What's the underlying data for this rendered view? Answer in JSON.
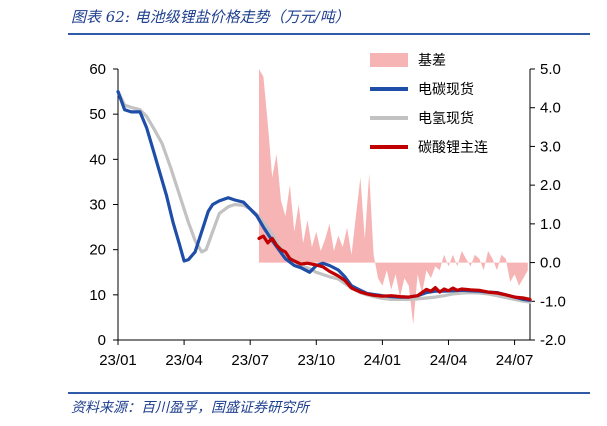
{
  "header": {
    "title": "图表 62:  电池级锂盐价格走势（万元/吨）"
  },
  "footer": {
    "source": "资料来源：百川盈孚，国盛证券研究所"
  },
  "chart_data": {
    "type": "line",
    "title": "图表 62:  电池级锂盐价格走势（万元/吨）",
    "xlabel": "",
    "ylabel": "",
    "x_tick_labels": [
      "23/01",
      "23/04",
      "23/07",
      "23/10",
      "24/01",
      "24/04",
      "24/07"
    ],
    "x_tick_positions": [
      0,
      3,
      6,
      9,
      12,
      15,
      18
    ],
    "ylim_left": [
      0,
      60
    ],
    "yticks_left": [
      "0",
      "10",
      "20",
      "30",
      "40",
      "50",
      "60"
    ],
    "ylim_right": [
      -2.0,
      5.0
    ],
    "yticks_right": [
      "-2.0",
      "-1.0",
      "0.0",
      "1.0",
      "2.0",
      "3.0",
      "4.0",
      "5.0"
    ],
    "legend_position": "top-right",
    "colors": {
      "basis": "#f7b4b4",
      "carbonate": "#1f4ea8",
      "hydroxide": "#c2c2c2",
      "futures": "#c00000",
      "rule": "#2e5aa8",
      "title": "#1f3f8f"
    },
    "series": [
      {
        "name": "基差",
        "type": "area",
        "axis": "right",
        "x": [
          6.4,
          6.6,
          6.8,
          7.0,
          7.2,
          7.4,
          7.6,
          7.8,
          8.0,
          8.2,
          8.4,
          8.6,
          8.8,
          9.0,
          9.2,
          9.4,
          9.6,
          9.8,
          10.0,
          10.2,
          10.4,
          10.6,
          10.8,
          11.0,
          11.2,
          11.4,
          11.6,
          11.8,
          12.0,
          12.2,
          12.4,
          12.6,
          12.8,
          13.0,
          13.2,
          13.4,
          13.6,
          13.8,
          14.0,
          14.2,
          14.4,
          14.6,
          14.8,
          15.0,
          15.2,
          15.4,
          15.6,
          15.8,
          16.0,
          16.2,
          16.4,
          16.6,
          16.8,
          17.0,
          17.2,
          17.4,
          17.6,
          17.8,
          18.0,
          18.2,
          18.4,
          18.6
        ],
        "values": [
          5.0,
          4.8,
          3.6,
          2.2,
          2.8,
          1.6,
          1.2,
          2.0,
          0.8,
          1.5,
          0.5,
          1.1,
          0.4,
          0.8,
          0.3,
          0.6,
          1.0,
          0.3,
          0.7,
          0.4,
          0.9,
          0.2,
          1.2,
          2.2,
          0.6,
          2.3,
          0.2,
          -0.4,
          -0.6,
          -0.2,
          -0.7,
          -0.3,
          -0.9,
          -0.4,
          -0.6,
          -1.6,
          -0.3,
          -0.8,
          -0.2,
          -0.4,
          -0.1,
          -0.2,
          0.2,
          -0.1,
          0.2,
          -0.1,
          0.3,
          0.1,
          -0.1,
          0.2,
          0.1,
          -0.2,
          0.3,
          0.1,
          -0.2,
          0.2,
          0.1,
          -0.5,
          -0.3,
          -0.6,
          -0.4,
          -0.2
        ]
      },
      {
        "name": "电碳现货",
        "type": "line",
        "axis": "left",
        "x": [
          0.0,
          0.3,
          0.6,
          1.0,
          1.3,
          1.6,
          1.9,
          2.2,
          2.5,
          2.8,
          3.0,
          3.2,
          3.5,
          3.8,
          4.1,
          4.3,
          4.6,
          5.0,
          5.3,
          5.7,
          6.0,
          6.3,
          6.6,
          7.0,
          7.3,
          7.6,
          8.0,
          8.3,
          8.7,
          9.0,
          9.3,
          9.6,
          10.0,
          10.3,
          10.6,
          11.0,
          11.3,
          11.6,
          12.0,
          12.4,
          12.8,
          13.2,
          13.6,
          14.0,
          14.4,
          14.8,
          15.2,
          15.6,
          16.0,
          16.4,
          16.8,
          17.2,
          17.6,
          18.0,
          18.4,
          18.7
        ],
        "values": [
          55.0,
          51.0,
          50.5,
          50.5,
          47.0,
          42.0,
          37.0,
          32.0,
          26.0,
          21.0,
          17.5,
          17.8,
          19.5,
          24.0,
          28.5,
          30.0,
          30.8,
          31.5,
          31.0,
          30.5,
          29.0,
          27.5,
          25.0,
          22.0,
          20.0,
          18.0,
          16.5,
          16.0,
          15.0,
          16.5,
          17.0,
          16.5,
          15.5,
          14.0,
          12.0,
          11.0,
          10.3,
          10.1,
          9.8,
          9.6,
          9.5,
          9.5,
          9.8,
          10.5,
          10.8,
          10.8,
          10.9,
          11.0,
          10.9,
          10.8,
          10.6,
          10.5,
          10.0,
          9.5,
          9.0,
          8.8
        ]
      },
      {
        "name": "电氢现货",
        "type": "line",
        "axis": "left",
        "x": [
          0.0,
          0.3,
          0.6,
          1.0,
          1.3,
          1.6,
          2.0,
          2.4,
          2.8,
          3.2,
          3.5,
          3.8,
          4.0,
          4.3,
          4.6,
          5.0,
          5.3,
          5.7,
          6.0,
          6.3,
          6.6,
          7.0,
          7.3,
          7.6,
          8.0,
          8.3,
          8.7,
          9.0,
          9.3,
          9.6,
          10.0,
          10.3,
          10.6,
          11.0,
          11.3,
          11.6,
          12.0,
          12.4,
          12.8,
          13.2,
          13.6,
          14.0,
          14.4,
          14.8,
          15.2,
          15.6,
          16.0,
          16.4,
          16.8,
          17.2,
          17.6,
          18.0,
          18.4,
          18.7
        ],
        "values": [
          55.0,
          52.0,
          51.5,
          51.0,
          49.5,
          47.0,
          43.5,
          38.0,
          32.0,
          26.0,
          22.0,
          19.5,
          20.0,
          24.0,
          28.0,
          29.5,
          30.0,
          29.8,
          29.0,
          27.8,
          26.0,
          23.5,
          21.0,
          19.0,
          17.5,
          16.5,
          15.8,
          15.0,
          14.5,
          14.0,
          13.5,
          12.5,
          11.5,
          10.5,
          10.0,
          9.6,
          9.2,
          9.0,
          9.0,
          9.0,
          9.1,
          9.3,
          9.5,
          9.8,
          10.2,
          10.4,
          10.5,
          10.4,
          10.2,
          9.8,
          9.4,
          9.0,
          8.6,
          8.4
        ]
      },
      {
        "name": "碳酸锂主连",
        "type": "line",
        "axis": "left",
        "x": [
          6.4,
          6.6,
          6.8,
          7.0,
          7.2,
          7.4,
          7.6,
          7.8,
          8.0,
          8.3,
          8.6,
          9.0,
          9.3,
          9.6,
          10.0,
          10.3,
          10.6,
          11.0,
          11.3,
          11.6,
          12.0,
          12.4,
          12.8,
          13.2,
          13.6,
          14.0,
          14.2,
          14.4,
          14.6,
          14.8,
          15.0,
          15.2,
          15.4,
          15.6,
          16.0,
          16.4,
          16.8,
          17.2,
          17.6,
          18.0,
          18.4,
          18.7
        ],
        "values": [
          22.5,
          23.0,
          21.5,
          22.5,
          21.0,
          20.0,
          19.5,
          18.0,
          17.5,
          16.8,
          17.0,
          16.6,
          16.2,
          15.2,
          14.2,
          13.2,
          11.5,
          10.6,
          10.2,
          9.9,
          9.7,
          9.8,
          9.6,
          9.5,
          9.8,
          11.2,
          10.8,
          11.6,
          10.6,
          11.3,
          10.9,
          11.5,
          11.0,
          11.3,
          11.1,
          11.0,
          10.6,
          10.4,
          10.0,
          9.5,
          9.3,
          9.0
        ]
      }
    ]
  }
}
